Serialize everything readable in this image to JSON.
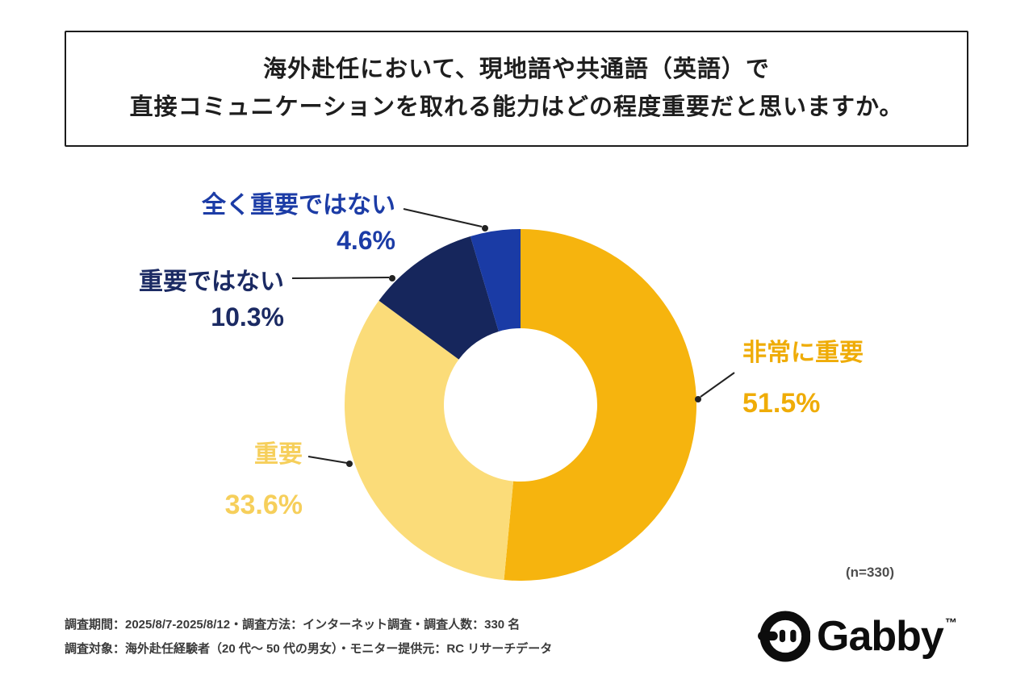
{
  "title": {
    "line1": "海外赴任において、現地語や共通語（英語）で",
    "line2": "直接コミュニケーションを取れる能力はどの程度重要だと思いますか。"
  },
  "chart_data": {
    "type": "pie",
    "subtype": "donut",
    "direction": "clockwise",
    "start_angle_deg": 0,
    "categories": [
      "非常に重要",
      "重要",
      "重要ではない",
      "全く重要ではない"
    ],
    "values": [
      51.5,
      33.6,
      10.3,
      4.6
    ],
    "percent_labels": [
      "51.5%",
      "33.6%",
      "10.3%",
      "4.6%"
    ],
    "colors": [
      "#F6B40E",
      "#FBDC79",
      "#16265C",
      "#1A3BA5"
    ],
    "label_colors": [
      "#EFAC07",
      "#F6CF5B",
      "#1B2A63",
      "#1C3CA6"
    ],
    "note": "(n=330)",
    "legend_position": "callouts",
    "grid": false
  },
  "footer": {
    "line1": "調査期間：2025/8/7-2025/8/12・調査方法：インターネット調査・調査人数：330 名",
    "line2": "調査対象：海外赴任経験者（20 代〜 50 代の男女）・モニター提供元：RC リサーチデータ"
  },
  "logo": {
    "text": "Gabby",
    "tm": "™"
  }
}
